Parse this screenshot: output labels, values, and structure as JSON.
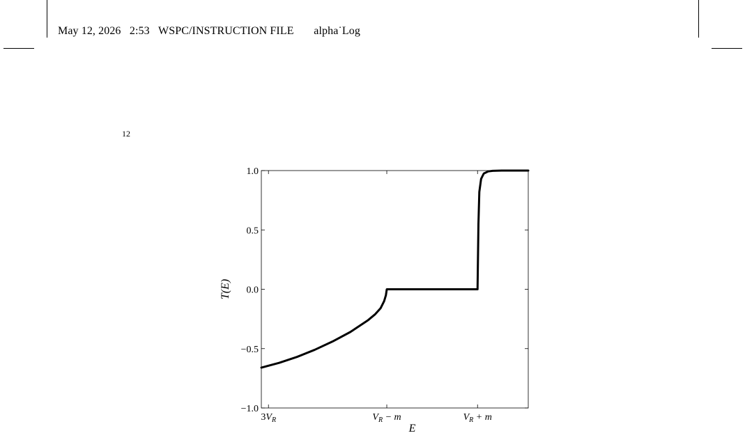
{
  "header": {
    "date": "May 12, 2026",
    "time": "2:53",
    "label": "WSPC/INSTRUCTION FILE",
    "filename": "alpha˙Log"
  },
  "page_number": "12",
  "chart_data": {
    "type": "line",
    "xlabel": "E",
    "ylabel": "T(E)",
    "ylim": [
      -1.0,
      1.0
    ],
    "yticks": [
      -1.0,
      -0.5,
      0.0,
      0.5,
      1.0
    ],
    "ytick_labels": [
      "−1.0",
      "−0.5",
      "0.0",
      "0.5",
      "1.0"
    ],
    "xticks": [
      {
        "base": "3V",
        "sub": "R",
        "suffix": ""
      },
      {
        "base": "V",
        "sub": "R",
        "suffix": " − m"
      },
      {
        "base": "V",
        "sub": "R",
        "suffix": " + m"
      }
    ],
    "xlim": [
      0,
      3
    ],
    "xtick_positions": [
      0.08,
      1.41,
      2.43
    ],
    "series": [
      {
        "color": "#000000",
        "x": [
          0.0,
          0.2,
          0.4,
          0.6,
          0.8,
          1.0,
          1.1,
          1.2,
          1.28,
          1.34,
          1.38,
          1.4,
          1.41,
          2.43,
          2.44,
          2.45,
          2.47,
          2.5,
          2.55,
          2.6,
          2.7,
          2.8,
          3.0
        ],
        "y": [
          -0.66,
          -0.62,
          -0.57,
          -0.51,
          -0.44,
          -0.36,
          -0.31,
          -0.26,
          -0.21,
          -0.16,
          -0.1,
          -0.05,
          0.0,
          0.0,
          0.55,
          0.82,
          0.93,
          0.975,
          0.993,
          0.998,
          1.0,
          1.0,
          1.0
        ]
      }
    ]
  }
}
